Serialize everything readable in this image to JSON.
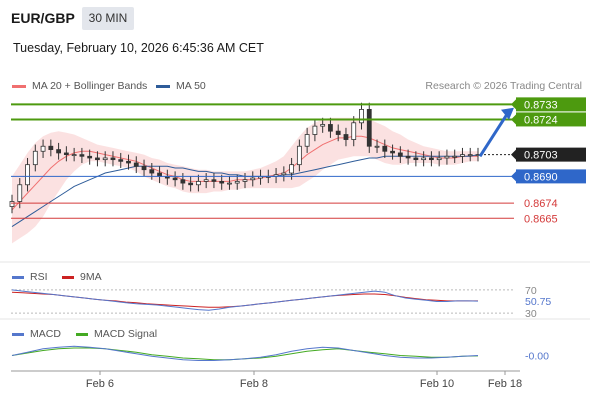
{
  "header": {
    "symbol": "EUR/GBP",
    "timeframe": "30 MIN",
    "datetime": "Tuesday, February 10, 2026 6:45:36 AM CET"
  },
  "legend": {
    "ma20_label": "MA 20 + Bollinger Bands",
    "ma50_label": "MA 50",
    "copyright": "Research © 2026 Trading Central"
  },
  "colors": {
    "ma20": "#f07070",
    "ma50": "#2e5c99",
    "band_fill": "#fbdede",
    "candle": "#333333",
    "resistance": "#4d9a0f",
    "support_blue": "#2f67c9",
    "support_red": "#d43a3a",
    "arrow": "#2f67c9",
    "rsi": "#5577cc",
    "rsi_ma": "#cc2222",
    "macd": "#5577cc",
    "macd_signal": "#44aa22"
  },
  "chart_data": [
    {
      "type": "candlestick",
      "ylim": [
        0.8655,
        0.8738
      ],
      "current_price": 0.8703,
      "levels": [
        {
          "value": 0.8733,
          "label": "0.8733",
          "kind": "resistance"
        },
        {
          "value": 0.8724,
          "label": "0.8724",
          "kind": "resistance"
        },
        {
          "value": 0.8703,
          "label": "0.8703",
          "kind": "current"
        },
        {
          "value": 0.869,
          "label": "0.8690",
          "kind": "pivot"
        },
        {
          "value": 0.8674,
          "label": "0.8674",
          "kind": "support"
        },
        {
          "value": 0.8665,
          "label": "0.8665",
          "kind": "support"
        }
      ],
      "close": [
        0.8675,
        0.8685,
        0.8697,
        0.8705,
        0.8708,
        0.8706,
        0.8704,
        0.8703,
        0.8703,
        0.8702,
        0.8701,
        0.87,
        0.8701,
        0.87,
        0.8699,
        0.8698,
        0.8696,
        0.8694,
        0.8692,
        0.869,
        0.8689,
        0.8688,
        0.8686,
        0.8685,
        0.8687,
        0.8688,
        0.8687,
        0.8686,
        0.8686,
        0.8687,
        0.8688,
        0.8689,
        0.869,
        0.869,
        0.8691,
        0.8692,
        0.8697,
        0.8708,
        0.8715,
        0.872,
        0.8721,
        0.8717,
        0.8715,
        0.8712,
        0.8722,
        0.873,
        0.8708,
        0.8708,
        0.8705,
        0.8704,
        0.8702,
        0.8701,
        0.87,
        0.8701,
        0.87,
        0.8701,
        0.8702,
        0.8702,
        0.8703,
        0.8703,
        0.8703
      ],
      "ma20": [
        0.867,
        0.8675,
        0.868,
        0.8685,
        0.869,
        0.8695,
        0.8699,
        0.8702,
        0.8704,
        0.8705,
        0.8705,
        0.8704,
        0.8703,
        0.8702,
        0.8701,
        0.87,
        0.8699,
        0.8697,
        0.8695,
        0.8693,
        0.8691,
        0.869,
        0.8688,
        0.8687,
        0.8687,
        0.8687,
        0.8687,
        0.8687,
        0.8687,
        0.8688,
        0.8688,
        0.8688,
        0.8689,
        0.869,
        0.8691,
        0.8692,
        0.8695,
        0.8699,
        0.8703,
        0.8706,
        0.8709,
        0.8711,
        0.8713,
        0.8713,
        0.8714,
        0.8714,
        0.8713,
        0.8711,
        0.8709,
        0.8707,
        0.8706,
        0.8705,
        0.8704,
        0.8703,
        0.8702,
        0.8701,
        0.8701,
        0.8701,
        0.8702,
        0.8702,
        0.8702
      ],
      "band_upper": [
        0.869,
        0.8697,
        0.8704,
        0.871,
        0.8714,
        0.8716,
        0.8717,
        0.8716,
        0.8715,
        0.8713,
        0.8711,
        0.8709,
        0.8708,
        0.8707,
        0.8706,
        0.8705,
        0.8704,
        0.8703,
        0.8701,
        0.87,
        0.8698,
        0.8697,
        0.8696,
        0.8695,
        0.8694,
        0.8694,
        0.8693,
        0.8693,
        0.8693,
        0.8693,
        0.8693,
        0.8694,
        0.8695,
        0.8697,
        0.8699,
        0.8702,
        0.8708,
        0.8714,
        0.8719,
        0.8722,
        0.8724,
        0.8725,
        0.8725,
        0.8725,
        0.8725,
        0.8725,
        0.8724,
        0.8722,
        0.872,
        0.8717,
        0.8715,
        0.8712,
        0.871,
        0.8708,
        0.8707,
        0.8706,
        0.8705,
        0.8705,
        0.8705,
        0.8705,
        0.8705
      ],
      "band_lower": [
        0.865,
        0.8653,
        0.8656,
        0.866,
        0.8666,
        0.8674,
        0.8681,
        0.8688,
        0.8693,
        0.8697,
        0.8699,
        0.8699,
        0.8698,
        0.8697,
        0.8696,
        0.8695,
        0.8693,
        0.869,
        0.8688,
        0.8686,
        0.8684,
        0.8683,
        0.8681,
        0.868,
        0.868,
        0.868,
        0.8681,
        0.8681,
        0.8682,
        0.8682,
        0.8683,
        0.8683,
        0.8683,
        0.8683,
        0.8683,
        0.8683,
        0.8683,
        0.8684,
        0.8687,
        0.869,
        0.8694,
        0.8697,
        0.87,
        0.8701,
        0.8702,
        0.8702,
        0.8702,
        0.87,
        0.8698,
        0.8697,
        0.8697,
        0.8698,
        0.8698,
        0.8698,
        0.8698,
        0.8697,
        0.8697,
        0.8697,
        0.8698,
        0.8699,
        0.8699
      ],
      "ma50": [
        0.866,
        0.8663,
        0.8666,
        0.8669,
        0.8672,
        0.8675,
        0.8678,
        0.8681,
        0.8684,
        0.8686,
        0.8688,
        0.869,
        0.8692,
        0.8693,
        0.8694,
        0.8695,
        0.8696,
        0.8696,
        0.8696,
        0.8696,
        0.8696,
        0.8695,
        0.8695,
        0.8694,
        0.8693,
        0.8693,
        0.8692,
        0.8692,
        0.8691,
        0.8691,
        0.869,
        0.869,
        0.869,
        0.869,
        0.869,
        0.8691,
        0.8691,
        0.8692,
        0.8693,
        0.8694,
        0.8695,
        0.8696,
        0.8697,
        0.8698,
        0.8699,
        0.87,
        0.8701,
        0.8701,
        0.8702,
        0.8702,
        0.8702,
        0.8702,
        0.8702,
        0.8702,
        0.8702,
        0.8702,
        0.8702,
        0.8702,
        0.8702,
        0.8702,
        0.8703
      ],
      "x_ticks": [
        "Feb 6",
        "Feb 8",
        "Feb 10",
        "Feb 18"
      ]
    },
    {
      "type": "line",
      "name_label": "RSI",
      "ma_label": "9MA",
      "ylim": [
        25,
        75
      ],
      "ticks": [
        "70",
        "50.75",
        "30"
      ],
      "tick_values": [
        70,
        50.75,
        30
      ],
      "rsi": [
        70,
        68,
        66,
        64,
        62,
        60,
        58,
        56,
        54,
        52,
        50,
        48,
        46,
        45,
        44,
        42,
        40,
        38,
        36,
        35,
        37,
        40,
        42,
        44,
        46,
        48,
        50,
        52,
        54,
        56,
        58,
        60,
        62,
        64,
        66,
        68,
        66,
        60,
        56,
        54,
        52,
        50,
        50,
        51,
        51,
        50.75
      ],
      "rsi_ma": [
        66,
        65,
        64,
        63,
        62,
        60,
        58,
        56,
        54,
        52,
        51,
        49,
        48,
        46,
        45,
        44,
        43,
        42,
        41,
        40,
        40,
        41,
        42,
        44,
        46,
        48,
        50,
        52,
        54,
        56,
        58,
        60,
        61,
        62,
        63,
        63,
        62,
        60,
        57,
        55,
        53,
        52,
        51,
        51,
        51,
        51
      ]
    },
    {
      "type": "line",
      "name_label": "MACD",
      "signal_label": "MACD Signal",
      "ylim": [
        -1.5,
        1.5
      ],
      "ticks": [
        "-0.00"
      ],
      "tick_values": [
        0
      ],
      "macd": [
        0.0,
        0.4,
        0.8,
        1.0,
        1.1,
        1.0,
        0.8,
        0.5,
        0.2,
        -0.1,
        -0.3,
        -0.5,
        -0.6,
        -0.6,
        -0.5,
        -0.4,
        -0.2,
        0.1,
        0.5,
        0.8,
        1.0,
        0.9,
        0.6,
        0.3,
        0.0,
        -0.2,
        -0.3,
        -0.3,
        -0.2,
        -0.1,
        0.0
      ],
      "signal": [
        0.0,
        0.3,
        0.6,
        0.8,
        0.9,
        0.9,
        0.8,
        0.6,
        0.4,
        0.1,
        -0.1,
        -0.3,
        -0.4,
        -0.5,
        -0.5,
        -0.4,
        -0.3,
        -0.1,
        0.2,
        0.5,
        0.7,
        0.8,
        0.6,
        0.4,
        0.2,
        0.0,
        -0.1,
        -0.2,
        -0.2,
        -0.1,
        -0.05
      ]
    }
  ]
}
